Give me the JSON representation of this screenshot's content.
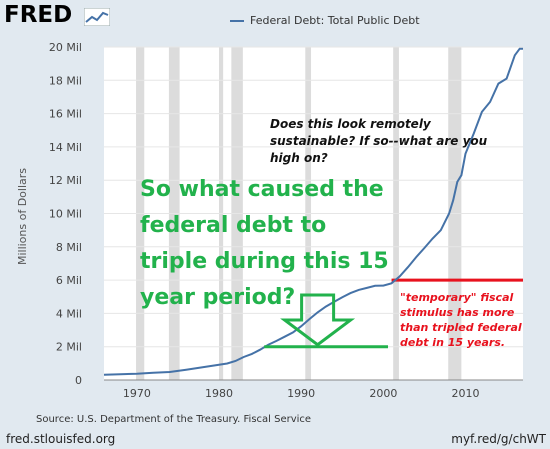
{
  "header": {
    "logo_text": "FRED",
    "logo_mark": "fred-graph-icon",
    "legend_label": "Federal Debt: Total Public Debt",
    "ylabel": "Millions of Dollars"
  },
  "footer": {
    "source": "Source: U.S. Department of the Treasury. Fiscal Service",
    "site": "fred.stlouisfed.org",
    "short_url": "myf.red/g/chWT"
  },
  "annotations": {
    "question": "Does this look remotely sustainable? If so--what are you high on?",
    "headline": "So what caused the federal debt to triple during this 15 year period?",
    "stimulus_note": "\"temporary\" fiscal stimulus has more than tripled federal debt in 15 years."
  },
  "colors": {
    "series": "#4572a7",
    "recession": "#dcdcdc",
    "headline": "#22b24c",
    "stimulus": "#e8121e"
  },
  "chart_data": {
    "type": "line",
    "title": "",
    "legend": [
      "Federal Debt: Total Public Debt"
    ],
    "xlabel": "",
    "ylabel": "Millions of Dollars",
    "xlim": [
      1966,
      2017
    ],
    "ylim": [
      0,
      20
    ],
    "x_ticks": [
      1970,
      1980,
      1990,
      2000,
      2010
    ],
    "x_tick_labels": [
      "1970",
      "1980",
      "1990",
      "2000",
      "2010"
    ],
    "y_ticks": [
      0,
      2,
      4,
      6,
      8,
      10,
      12,
      14,
      16,
      18,
      20
    ],
    "y_tick_labels": [
      "0",
      "2 Mil",
      "4 Mil",
      "6 Mil",
      "8 Mil",
      "10 Mil",
      "12 Mil",
      "14 Mil",
      "16 Mil",
      "18 Mil",
      "20 Mil"
    ],
    "grid": "horizontal",
    "recessions": [
      [
        1969.9,
        1970.9
      ],
      [
        1973.9,
        1975.2
      ],
      [
        1980.0,
        1980.5
      ],
      [
        1981.5,
        1982.9
      ],
      [
        1990.5,
        1991.2
      ],
      [
        2001.2,
        2001.9
      ],
      [
        2007.9,
        2009.5
      ]
    ],
    "series": [
      {
        "name": "Federal Debt: Total Public Debt",
        "x": [
          1966,
          1968,
          1970,
          1972,
          1974,
          1976,
          1978,
          1980,
          1981,
          1982,
          1983,
          1984,
          1985,
          1986,
          1987,
          1988,
          1989,
          1990,
          1991,
          1992,
          1993,
          1994,
          1995,
          1996,
          1997,
          1998,
          1999,
          2000,
          2001,
          2002,
          2003,
          2004,
          2005,
          2006,
          2007,
          2008,
          2008.5,
          2009,
          2009.5,
          2010,
          2011,
          2012,
          2013,
          2014,
          2015,
          2016,
          2016.6,
          2017
        ],
        "values": [
          0.32,
          0.35,
          0.38,
          0.43,
          0.48,
          0.62,
          0.77,
          0.91,
          0.99,
          1.14,
          1.38,
          1.57,
          1.82,
          2.12,
          2.35,
          2.6,
          2.86,
          3.23,
          3.66,
          4.06,
          4.41,
          4.69,
          4.97,
          5.22,
          5.41,
          5.53,
          5.66,
          5.67,
          5.81,
          6.23,
          6.78,
          7.38,
          7.93,
          8.5,
          9.0,
          10.0,
          10.8,
          11.9,
          12.3,
          13.6,
          14.8,
          16.1,
          16.7,
          17.8,
          18.1,
          19.5,
          19.9,
          19.9
        ]
      }
    ],
    "overlays": {
      "red_level": 6.0,
      "red_from_x": 2001,
      "green_bar_level": 2.0,
      "green_bar_from_x": 1985.5,
      "arrow_x": 1992
    }
  }
}
